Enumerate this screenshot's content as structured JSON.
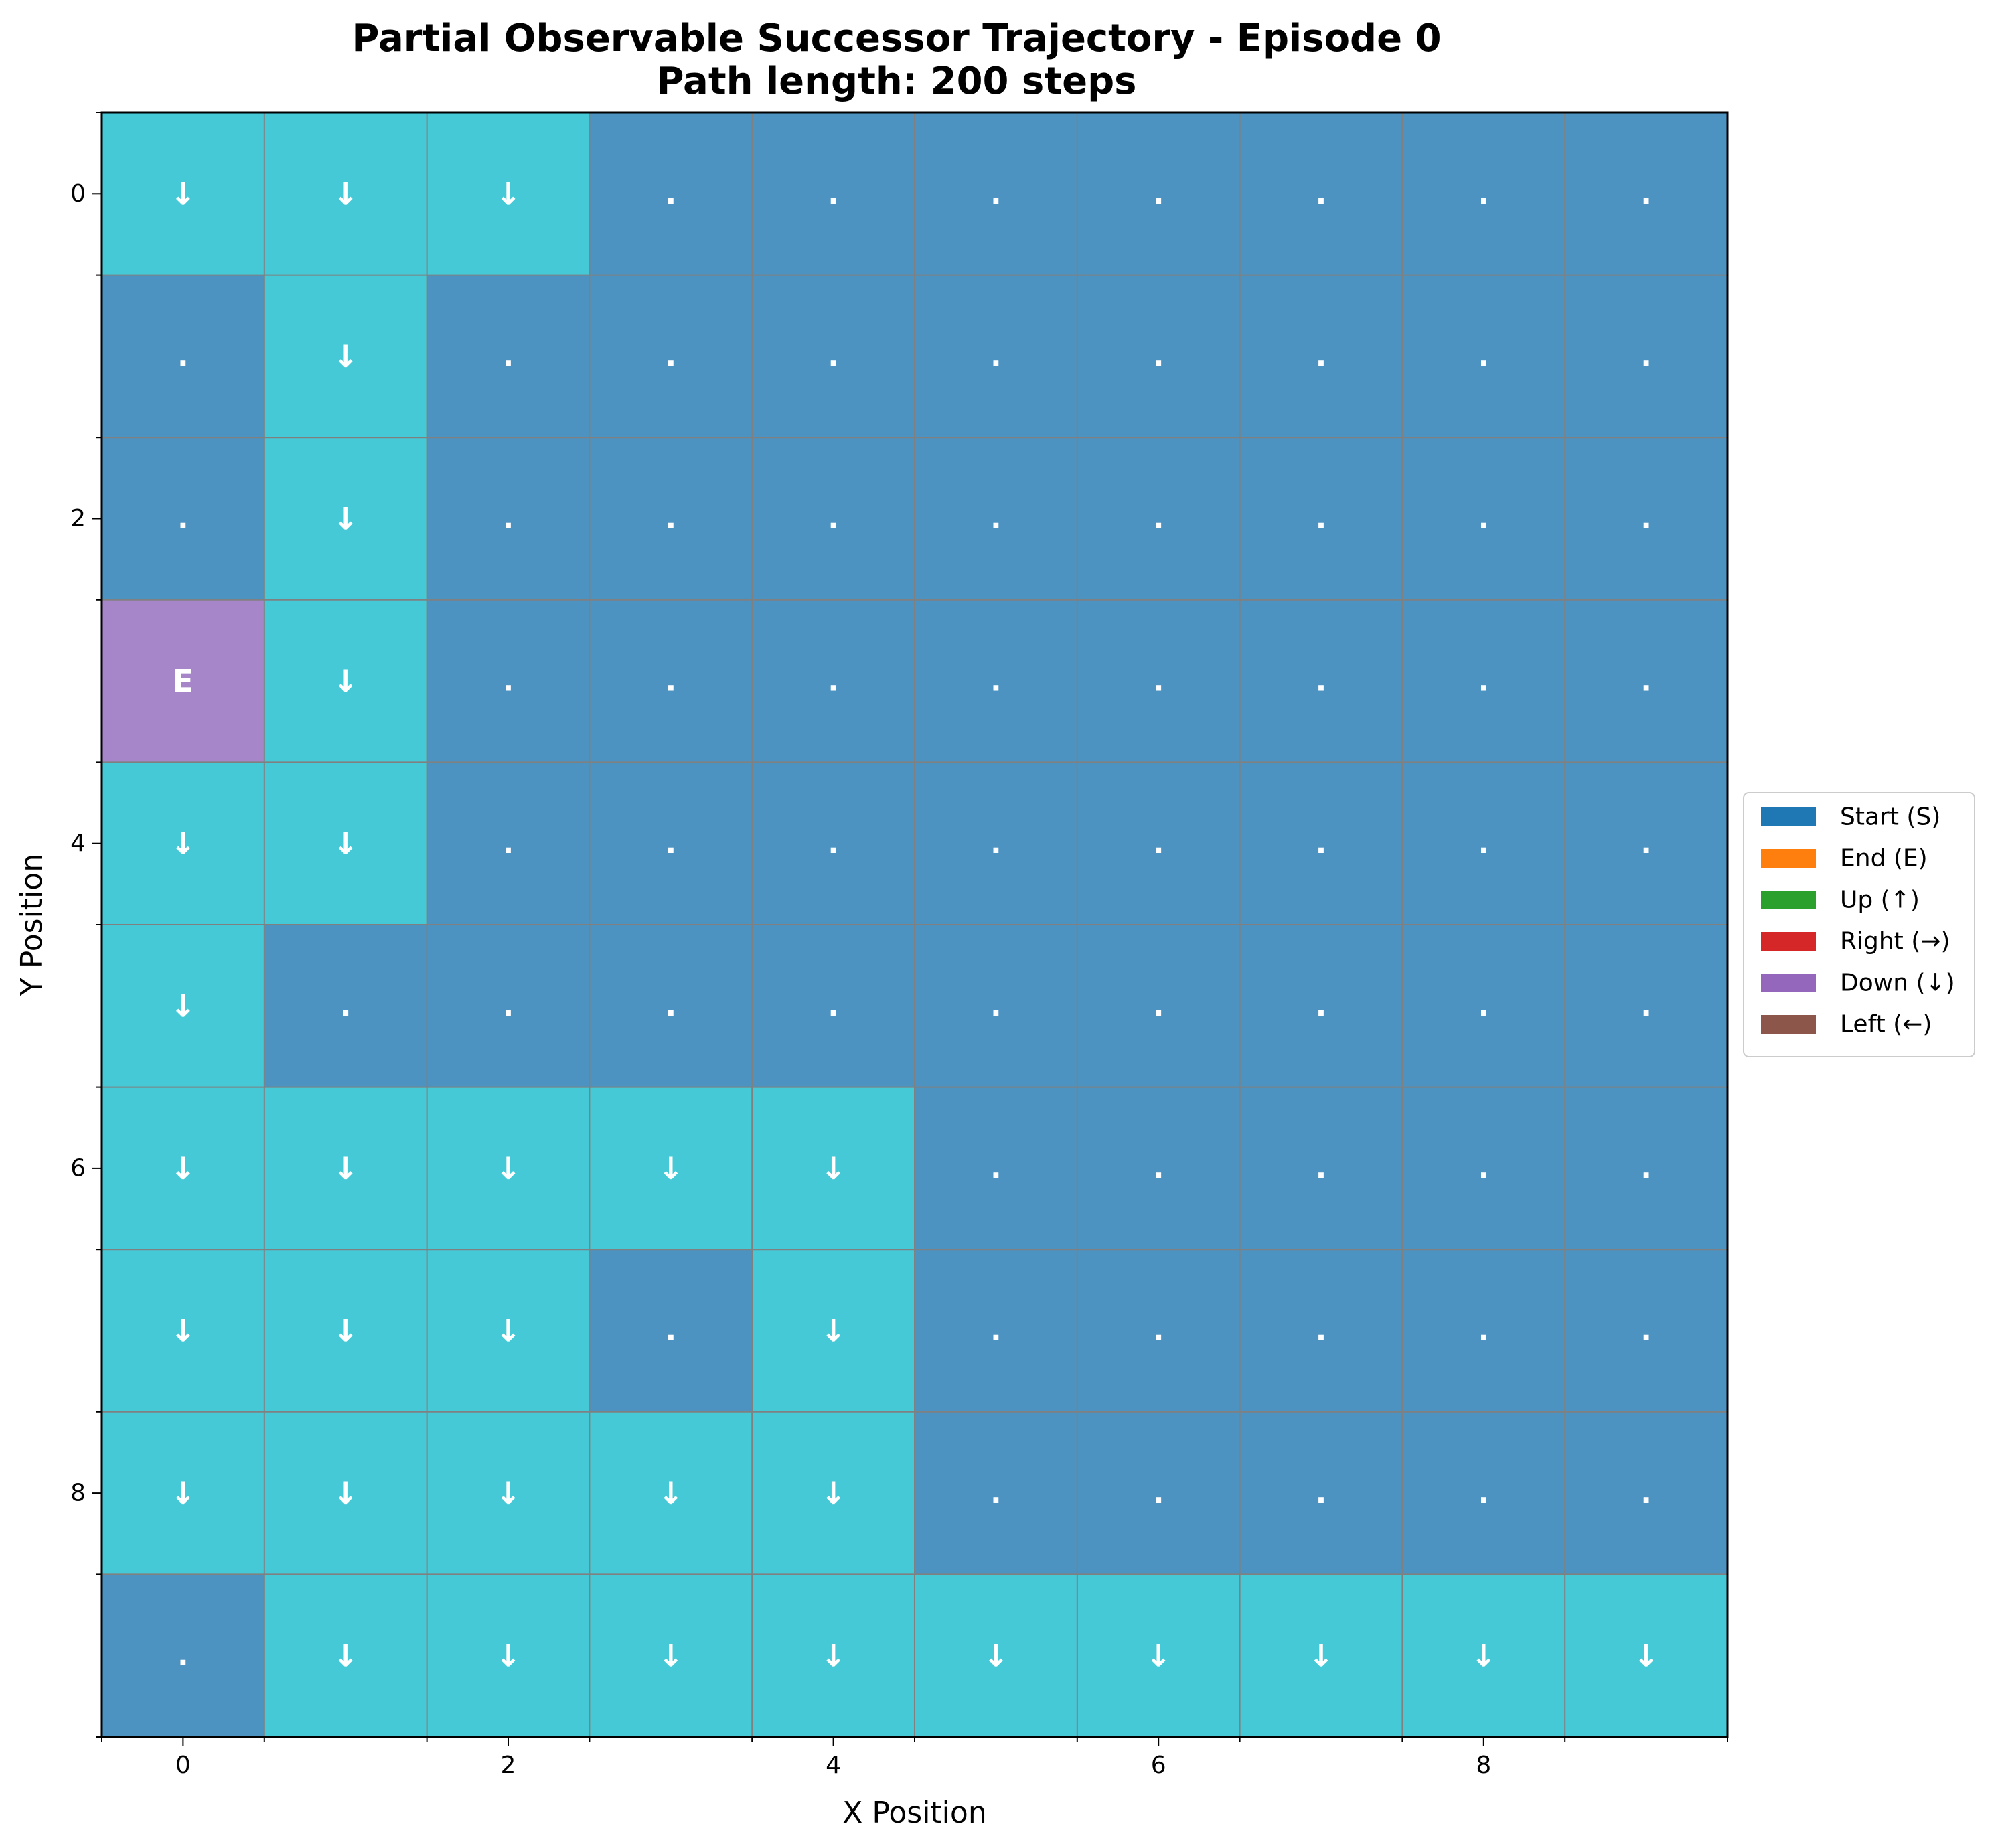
{
  "chart_data": {
    "type": "heatmap",
    "title": "Partial Observable Successor Trajectory - Episode 0",
    "subtitle": "Path length: 200 steps",
    "xlabel": "X Position",
    "ylabel": "Y Position",
    "x_ticks": [
      "0",
      "2",
      "4",
      "6",
      "8"
    ],
    "y_ticks": [
      "0",
      "2",
      "4",
      "6",
      "8"
    ],
    "grid_size": [
      10,
      10
    ],
    "y_axis_inverted": true,
    "colors": {
      "visited": "#45c9d6",
      "unvisited": "#4c93c2",
      "end": "#a686c8",
      "grid_line": "#808080",
      "cell_text": "#ffffff"
    },
    "cells": [
      [
        "↓",
        "↓",
        "↓",
        ".",
        ".",
        ".",
        ".",
        ".",
        ".",
        "."
      ],
      [
        ".",
        "↓",
        ".",
        ".",
        ".",
        ".",
        ".",
        ".",
        ".",
        "."
      ],
      [
        ".",
        "↓",
        ".",
        ".",
        ".",
        ".",
        ".",
        ".",
        ".",
        "."
      ],
      [
        "E",
        "↓",
        ".",
        ".",
        ".",
        ".",
        ".",
        ".",
        ".",
        "."
      ],
      [
        "↓",
        "↓",
        ".",
        ".",
        ".",
        ".",
        ".",
        ".",
        ".",
        "."
      ],
      [
        "↓",
        ".",
        ".",
        ".",
        ".",
        ".",
        ".",
        ".",
        ".",
        "."
      ],
      [
        "↓",
        "↓",
        "↓",
        "↓",
        "↓",
        ".",
        ".",
        ".",
        ".",
        "."
      ],
      [
        "↓",
        "↓",
        "↓",
        ".",
        "↓",
        ".",
        ".",
        ".",
        ".",
        "."
      ],
      [
        "↓",
        "↓",
        "↓",
        "↓",
        "↓",
        ".",
        ".",
        ".",
        ".",
        "."
      ],
      [
        ".",
        "↓",
        "↓",
        "↓",
        "↓",
        "↓",
        "↓",
        "↓",
        "↓",
        "↓"
      ]
    ],
    "legend": {
      "placement": "center-right",
      "entries": [
        {
          "label": "Start (S)",
          "color": "#1f77b4"
        },
        {
          "label": "End (E)",
          "color": "#ff7f0e"
        },
        {
          "label": "Up (↑)",
          "color": "#2ca02c"
        },
        {
          "label": "Right (→)",
          "color": "#d62728"
        },
        {
          "label": "Down (↓)",
          "color": "#9467bd"
        },
        {
          "label": "Left (←)",
          "color": "#8c564b"
        }
      ]
    }
  }
}
